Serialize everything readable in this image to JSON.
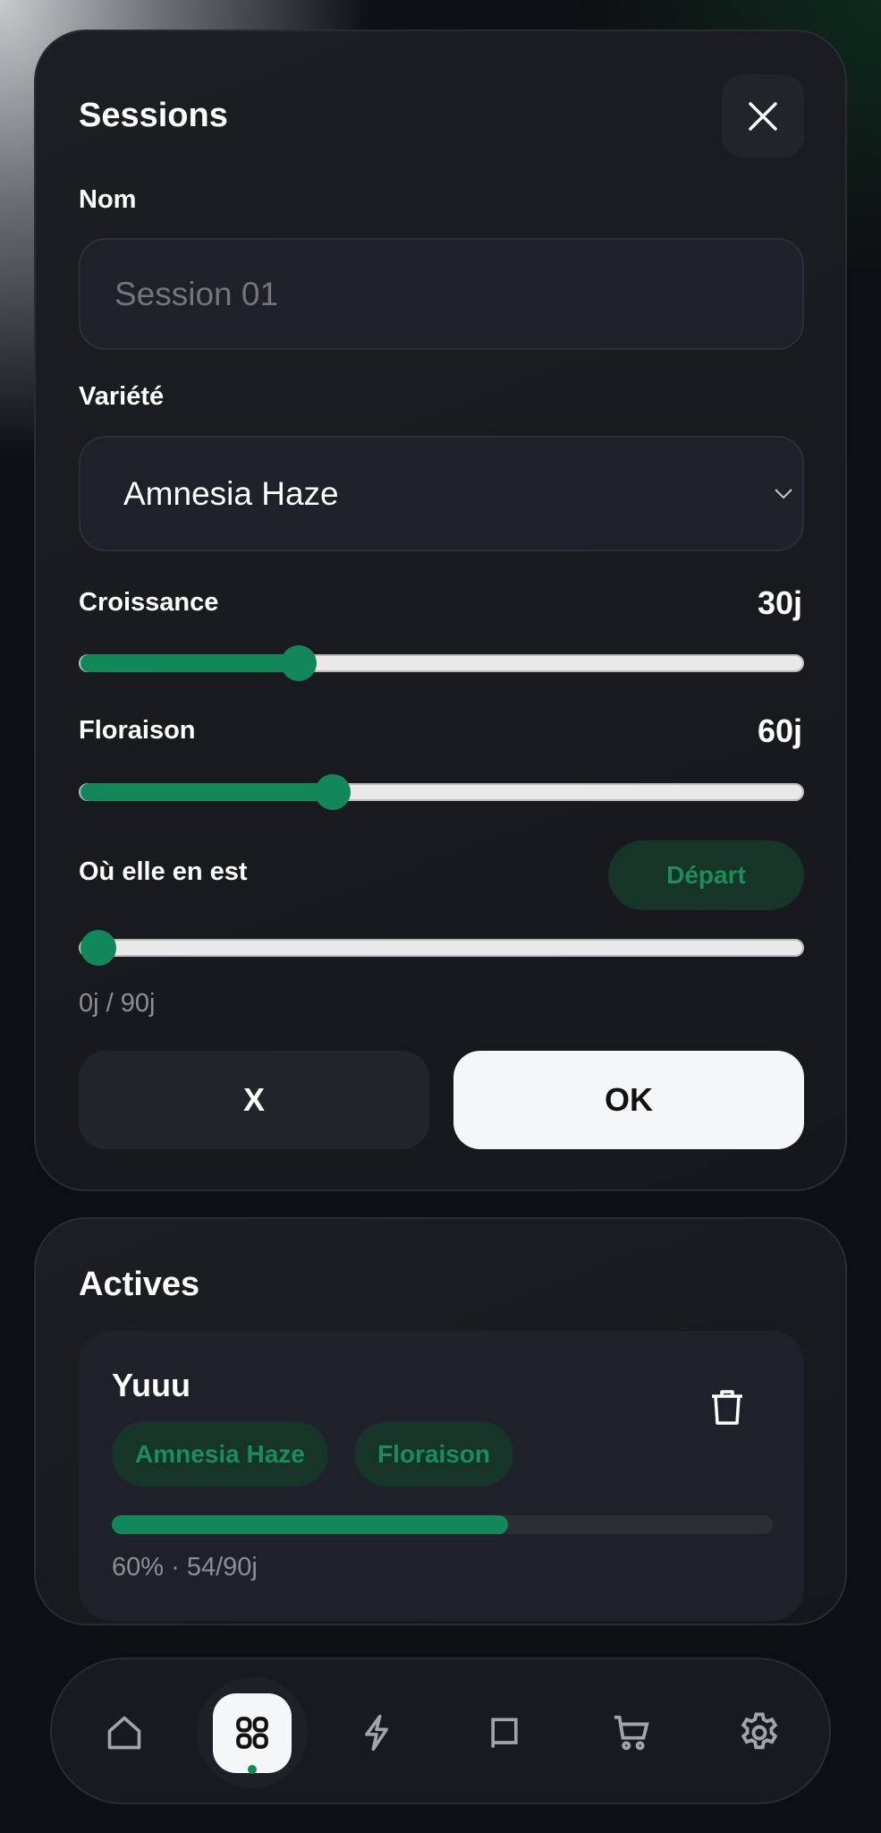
{
  "form": {
    "title": "Sessions",
    "name_label": "Nom",
    "name_placeholder": "Session 01",
    "variety_label": "Variété",
    "variety_value": "Amnesia Haze",
    "growth_label": "Croissance",
    "growth_value": "30j",
    "growth_fill_percent": 29,
    "flower_label": "Floraison",
    "flower_value": "60j",
    "flower_fill_percent": 34,
    "progress_label": "Où elle en est",
    "start_button": "Départ",
    "progress_fill_percent": 0,
    "progress_readout": "0j / 90j",
    "cancel_label": "X",
    "ok_label": "OK"
  },
  "actives": {
    "title": "Actives",
    "sessions": [
      {
        "name": "Yuuu",
        "variety": "Amnesia Haze",
        "phase": "Floraison",
        "progress_percent": 60,
        "progress_text": "60% · 54/90j"
      }
    ]
  },
  "nav": {
    "items": [
      "home-icon",
      "grid-icon",
      "bolt-icon",
      "book-icon",
      "cart-icon",
      "gear-icon"
    ],
    "active": "grid-icon"
  },
  "colors": {
    "accent": "#12885a",
    "chip_bg": "#173428",
    "background": "#0e0f12"
  }
}
